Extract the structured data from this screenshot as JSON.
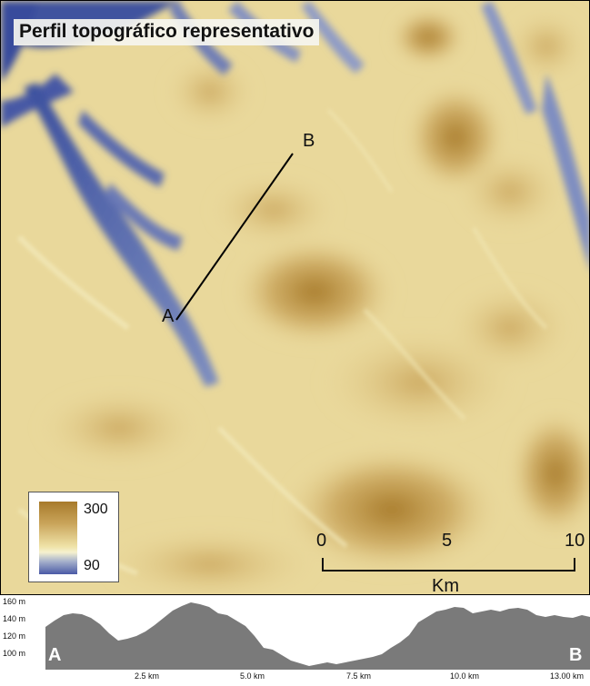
{
  "title": "Perfil topográfico representativo",
  "legend": {
    "max_label": "300",
    "min_label": "90",
    "colors": {
      "high": "#a77a2a",
      "mid": "#f5f1cf",
      "low": "#4a5aa6"
    }
  },
  "transect": {
    "start_label": "A",
    "end_label": "B"
  },
  "scale_bar": {
    "ticks": [
      "0",
      "5",
      "10"
    ],
    "unit": "Km"
  },
  "profile": {
    "y_ticks": [
      "160 m",
      "140 m",
      "120 m",
      "100 m"
    ],
    "x_ticks": [
      "2.5 km",
      "5.0 km",
      "7.5 km",
      "10.0 km",
      "13.00 km"
    ],
    "start_label": "A",
    "end_label": "B",
    "fill_color": "#7a7a7a"
  }
}
